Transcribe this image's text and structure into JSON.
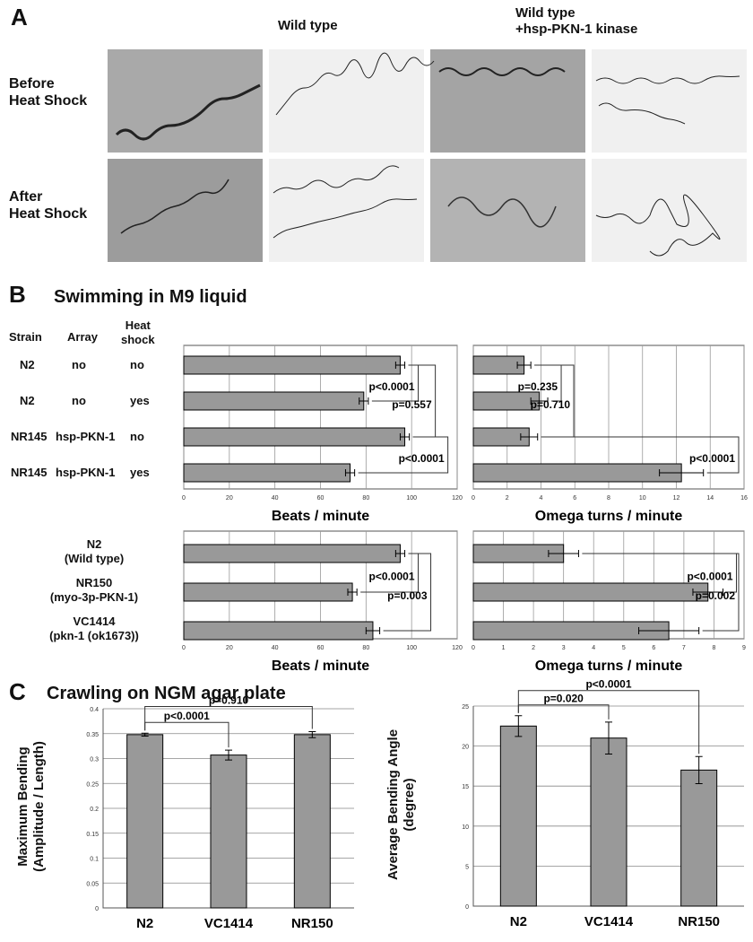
{
  "panel_a": {
    "label": "A",
    "columns": [
      "Wild type",
      "Wild type\n+hsp-PKN-1 kinase"
    ],
    "rows": [
      "Before\nHeat Shock",
      "After\nHeat Shock"
    ]
  },
  "panel_b": {
    "label": "B",
    "title": "Swimming in M9 liquid",
    "table": {
      "header": [
        "Strain",
        "Array",
        "Heat\nshock"
      ],
      "rows": [
        [
          "N2",
          "no",
          "no"
        ],
        [
          "N2",
          "no",
          "yes"
        ],
        [
          "NR145",
          "hsp-PKN-1",
          "no"
        ],
        [
          "NR145",
          "hsp-PKN-1",
          "yes"
        ]
      ]
    }
  },
  "panel_c": {
    "label": "C",
    "title": "Crawling on NGM agar plate"
  },
  "chart_data": [
    {
      "type": "hbar",
      "xlabel": "Beats / minute",
      "xlim": [
        0,
        120
      ],
      "xticks": [
        0,
        20,
        40,
        60,
        80,
        100,
        120
      ],
      "color": "#999999",
      "values": [
        95,
        79,
        97,
        73
      ],
      "errors": [
        2,
        2,
        2,
        2
      ],
      "comparisons": [
        {
          "from": 0,
          "to": 1,
          "label": "p<0.0001"
        },
        {
          "from": 0,
          "to": 2,
          "label": "p=0.557"
        },
        {
          "from": 2,
          "to": 3,
          "label": "p<0.0001"
        }
      ]
    },
    {
      "type": "hbar",
      "xlabel": "Omega turns / minute",
      "xlim": [
        0,
        16
      ],
      "xticks": [
        0,
        2,
        4,
        6,
        8,
        10,
        12,
        14,
        16
      ],
      "color": "#999999",
      "values": [
        3.0,
        3.9,
        3.3,
        12.3
      ],
      "errors": [
        0.4,
        0.5,
        0.5,
        1.3
      ],
      "comparisons": [
        {
          "from": 0,
          "to": 1,
          "label": "p=0.235"
        },
        {
          "from": 0,
          "to": 2,
          "label": "p=0.710"
        },
        {
          "from": 2,
          "to": 3,
          "label": "p<0.0001"
        }
      ]
    },
    {
      "type": "hbar",
      "xlabel": "Beats / minute",
      "categories": [
        "N2\n(Wild type)",
        "NR150\n(myo-3p-PKN-1)",
        "VC1414\n(pkn-1 (ok1673))"
      ],
      "xlim": [
        0,
        120
      ],
      "xticks": [
        0,
        20,
        40,
        60,
        80,
        100,
        120
      ],
      "color": "#999999",
      "values": [
        95,
        74,
        83
      ],
      "errors": [
        2,
        2,
        3
      ],
      "comparisons": [
        {
          "from": 0,
          "to": 1,
          "label": "p<0.0001"
        },
        {
          "from": 0,
          "to": 2,
          "label": "p=0.003"
        }
      ]
    },
    {
      "type": "hbar",
      "xlabel": "Omega turns / minute",
      "xlim": [
        0,
        9
      ],
      "xticks": [
        0,
        1,
        2,
        3,
        4,
        5,
        6,
        7,
        8,
        9
      ],
      "color": "#999999",
      "values": [
        3.0,
        7.8,
        6.5
      ],
      "errors": [
        0.5,
        0.5,
        1.0
      ],
      "comparisons": [
        {
          "from": 0,
          "to": 1,
          "label": "p<0.0001"
        },
        {
          "from": 0,
          "to": 2,
          "label": "p=0.002"
        }
      ]
    },
    {
      "type": "bar",
      "ylabel": "Maximum Bending\n(Amplitude / Length)",
      "categories": [
        "N2",
        "VC1414",
        "NR150"
      ],
      "ylim": [
        0,
        0.4
      ],
      "yticks": [
        0,
        0.05,
        0.1,
        0.15,
        0.2,
        0.25,
        0.3,
        0.35,
        0.4
      ],
      "color": "#999999",
      "values": [
        0.348,
        0.307,
        0.348
      ],
      "errors": [
        0.003,
        0.01,
        0.006
      ],
      "comparisons": [
        {
          "from": 0,
          "to": 1,
          "label": "p<0.0001"
        },
        {
          "from": 0,
          "to": 2,
          "label": "p=0.910"
        }
      ]
    },
    {
      "type": "bar",
      "ylabel": "Average Bending Angle\n(degree)",
      "categories": [
        "N2",
        "VC1414",
        "NR150"
      ],
      "ylim": [
        0,
        25
      ],
      "yticks": [
        0,
        5,
        10,
        15,
        20,
        25
      ],
      "color": "#999999",
      "values": [
        22.5,
        21,
        17
      ],
      "errors": [
        1.3,
        2,
        1.7
      ],
      "comparisons": [
        {
          "from": 0,
          "to": 1,
          "label": "p=0.020"
        },
        {
          "from": 0,
          "to": 2,
          "label": "p<0.0001"
        }
      ]
    }
  ]
}
